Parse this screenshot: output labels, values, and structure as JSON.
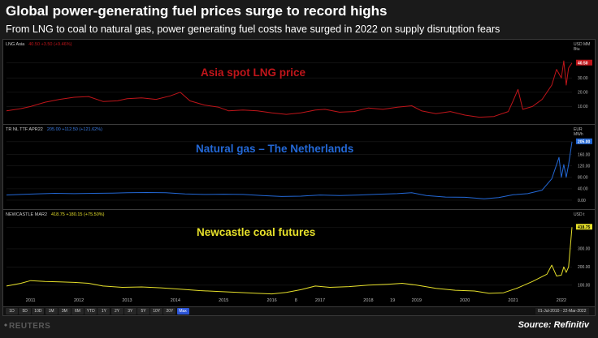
{
  "header": {
    "title": "Global power-generating fuel prices surge to record highs",
    "subtitle": "From LNG to coal to natural gas, power generating fuel costs have surged in 2022 on supply disrutption fears"
  },
  "colors": {
    "lng": "#c0151a",
    "gas": "#2368d6",
    "coal": "#e6e02a",
    "background": "#000000"
  },
  "x_axis": {
    "tick_labels": [
      "2011",
      "2012",
      "2013",
      "2014",
      "2015",
      "2016",
      "8",
      "2017",
      "2018",
      "19",
      "2019",
      "2020",
      "2021",
      "2022"
    ]
  },
  "range_bar": {
    "buttons": [
      "1D",
      "5D",
      "10D",
      "1M",
      "3M",
      "6M",
      "YTD",
      "1Y",
      "2Y",
      "3Y",
      "5Y",
      "10Y",
      "20Y",
      "Max"
    ],
    "active": "Max",
    "start_date": "01-Jul-2010",
    "end_date": "22-Mar-2022"
  },
  "footer": {
    "logo": "REUTERS",
    "source": "Source: Refinitiv"
  },
  "chart_data": [
    {
      "type": "line",
      "title": "Asia spot LNG price",
      "ticker": "LNG Asia",
      "last_value_label": "40.50",
      "change_label": "+3.50 (+9.46%)",
      "unit": "USD MM Btu",
      "ylim": [
        0,
        50
      ],
      "ytick_labels": [
        "10.00",
        "20.00",
        "30.00",
        "40.50"
      ],
      "ytick_values": [
        10,
        20,
        30,
        40.5
      ],
      "last_value": 40.5,
      "series": [
        {
          "x": [
            2010.5,
            2010.8,
            2011.0,
            2011.3,
            2011.6,
            2011.9,
            2012.2,
            2012.5,
            2012.8,
            2013.0,
            2013.3,
            2013.6,
            2013.9,
            2014.1,
            2014.3,
            2014.6,
            2014.9,
            2015.1,
            2015.4,
            2015.7,
            2016.0,
            2016.3,
            2016.6,
            2016.9,
            2017.1,
            2017.4,
            2017.7,
            2018.0,
            2018.3,
            2018.6,
            2018.9,
            2019.1,
            2019.4,
            2019.7,
            2020.0,
            2020.3,
            2020.6,
            2020.9,
            2021.0,
            2021.1,
            2021.2,
            2021.4,
            2021.6,
            2021.8,
            2021.9,
            2022.0,
            2022.05,
            2022.1,
            2022.15,
            2022.22
          ],
          "values": [
            7,
            8.5,
            10,
            13,
            15,
            16.5,
            17,
            13.5,
            14,
            15.5,
            16,
            15,
            17.5,
            20,
            14,
            11,
            9.5,
            7,
            7.5,
            7,
            5.5,
            4.5,
            5.5,
            7.5,
            8,
            6,
            6.5,
            9,
            8,
            9.5,
            10.5,
            7,
            5,
            6.5,
            4,
            2.5,
            3,
            6.5,
            14,
            22,
            8,
            10,
            15,
            25,
            36,
            30,
            42,
            25,
            37,
            40.5
          ]
        }
      ]
    },
    {
      "type": "line",
      "title": "Natural gas – The Netherlands",
      "ticker": "TR NL TTF APR22",
      "last_value_label": "205.00",
      "change_label": "+112.50 (+121.62%)",
      "unit": "EUR MWh",
      "ylim": [
        -20,
        230
      ],
      "ytick_labels": [
        "0.00",
        "40.00",
        "80.00",
        "120.00",
        "160.00",
        "205.00"
      ],
      "ytick_values": [
        0,
        40,
        80,
        120,
        160,
        205
      ],
      "last_value": 205,
      "series": [
        {
          "x": [
            2010.5,
            2010.8,
            2011.1,
            2011.5,
            2011.9,
            2012.3,
            2012.7,
            2013.0,
            2013.4,
            2013.8,
            2014.2,
            2014.6,
            2015.0,
            2015.4,
            2015.8,
            2016.2,
            2016.6,
            2017.0,
            2017.4,
            2017.8,
            2018.2,
            2018.6,
            2018.9,
            2019.2,
            2019.6,
            2020.0,
            2020.4,
            2020.7,
            2021.0,
            2021.3,
            2021.6,
            2021.8,
            2021.95,
            2022.0,
            2022.05,
            2022.1,
            2022.15,
            2022.22
          ],
          "values": [
            18,
            20,
            22,
            24,
            23,
            24,
            25,
            26,
            27,
            26,
            22,
            20,
            21,
            20,
            16,
            13,
            14,
            18,
            16,
            18,
            21,
            23,
            26,
            16,
            11,
            10,
            5,
            9,
            19,
            23,
            35,
            75,
            150,
            80,
            125,
            80,
            125,
            205
          ]
        }
      ]
    },
    {
      "type": "line",
      "title": "Newcastle coal futures",
      "ticker": "NEWCASTLE MAR2",
      "last_value_label": "418.75",
      "change_label": "+180.15 (+75.50%)",
      "unit": "USD t",
      "ylim": [
        50,
        460
      ],
      "ytick_labels": [
        "100.00",
        "200.00",
        "300.00",
        "418.75"
      ],
      "ytick_values": [
        100,
        200,
        300,
        418.75
      ],
      "last_value": 418.75,
      "series": [
        {
          "x": [
            2010.5,
            2010.8,
            2011.0,
            2011.3,
            2011.6,
            2011.9,
            2012.2,
            2012.5,
            2012.9,
            2013.3,
            2013.7,
            2014.1,
            2014.5,
            2014.9,
            2015.3,
            2015.7,
            2016.0,
            2016.3,
            2016.6,
            2016.9,
            2017.2,
            2017.6,
            2018.0,
            2018.4,
            2018.7,
            2019.0,
            2019.4,
            2019.8,
            2020.2,
            2020.5,
            2020.8,
            2021.1,
            2021.4,
            2021.7,
            2021.8,
            2021.9,
            2022.0,
            2022.05,
            2022.1,
            2022.15,
            2022.22
          ],
          "values": [
            95,
            110,
            125,
            120,
            118,
            115,
            110,
            95,
            88,
            90,
            85,
            78,
            70,
            65,
            60,
            55,
            52,
            60,
            75,
            95,
            88,
            92,
            100,
            105,
            110,
            100,
            82,
            72,
            68,
            55,
            58,
            85,
            120,
            160,
            210,
            150,
            155,
            200,
            170,
            200,
            418.75
          ]
        }
      ]
    }
  ]
}
